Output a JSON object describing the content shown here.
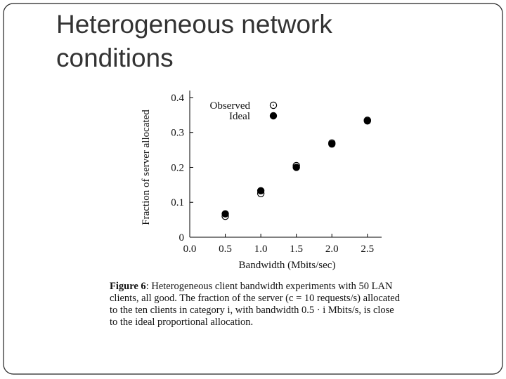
{
  "slide_title": [
    "Heterogeneous network",
    "conditions"
  ],
  "chart_data": {
    "type": "scatter",
    "x_label": "Bandwidth (Mbits/sec)",
    "y_label": "Fraction of server allocated",
    "x": [
      0.5,
      1.0,
      1.5,
      2.0,
      2.5
    ],
    "series": [
      {
        "name": "Observed",
        "color": "#000000",
        "marker": "open",
        "values": [
          0.06,
          0.125,
          0.205,
          0.27,
          0.335
        ]
      },
      {
        "name": "Ideal",
        "color": "#000000",
        "marker": "filled",
        "values": [
          0.067,
          0.133,
          0.2,
          0.267,
          0.333
        ]
      }
    ],
    "xlim": [
      0,
      2.7
    ],
    "ylim": [
      0,
      0.42
    ],
    "xticks": [
      {
        "value": 0,
        "label": "0.0"
      },
      0.5,
      {
        "value": 1,
        "label": "1.0"
      },
      1.5,
      {
        "value": 2,
        "label": "2.0"
      },
      2.5
    ],
    "yticks": [
      0,
      0.1,
      0.2,
      0.3,
      0.4
    ],
    "legend": "top-left",
    "grid": false
  },
  "caption": {
    "label": "Figure 6",
    "lines": [
      ": Heterogeneous client bandwidth experiments with 50 LAN",
      "clients, all good. The fraction of the server (c = 10 requests/s) allocated",
      "to the ten clients in category i, with bandwidth 0.5 · i Mbits/s, is close",
      "to the ideal proportional allocation."
    ]
  }
}
